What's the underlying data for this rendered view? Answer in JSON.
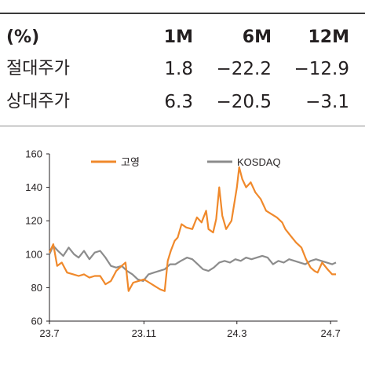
{
  "table": {
    "header": {
      "label": "(%)",
      "c1": "1M",
      "c2": "6M",
      "c3": "12M"
    },
    "rows": [
      {
        "label": "절대주가",
        "c1": "1.8",
        "c2": "−22.2",
        "c3": "−12.9"
      },
      {
        "label": "상대주가",
        "c1": "6.3",
        "c2": "−20.5",
        "c3": "−3.1"
      }
    ]
  },
  "chart_data": {
    "type": "line",
    "ylim": [
      60,
      160
    ],
    "yticks": [
      "60",
      "80",
      "100",
      "120",
      "140",
      "160"
    ],
    "xticks": [
      {
        "label": "23.7",
        "x": "2023-07-01"
      },
      {
        "label": "23.11",
        "x": "2023-11-01"
      },
      {
        "label": "24.3",
        "x": "2024-03-01"
      },
      {
        "label": "24.7",
        "x": "2024-07-01"
      }
    ],
    "xlim": [
      "2023-07-01",
      "2024-07-10"
    ],
    "legend_position": "top",
    "series": [
      {
        "name": "고영",
        "color": "#f0892b",
        "points": [
          [
            "2023-07-01",
            101
          ],
          [
            "2023-07-06",
            106
          ],
          [
            "2023-07-11",
            93
          ],
          [
            "2023-07-17",
            95
          ],
          [
            "2023-07-24",
            89
          ],
          [
            "2023-08-01",
            88
          ],
          [
            "2023-08-08",
            87
          ],
          [
            "2023-08-15",
            88
          ],
          [
            "2023-08-22",
            86
          ],
          [
            "2023-08-29",
            87
          ],
          [
            "2023-09-05",
            87
          ],
          [
            "2023-09-12",
            82
          ],
          [
            "2023-09-19",
            84
          ],
          [
            "2023-09-26",
            90
          ],
          [
            "2023-10-03",
            93
          ],
          [
            "2023-10-08",
            95
          ],
          [
            "2023-10-12",
            78
          ],
          [
            "2023-10-18",
            83
          ],
          [
            "2023-10-25",
            84
          ],
          [
            "2023-11-01",
            85
          ],
          [
            "2023-11-08",
            83
          ],
          [
            "2023-11-15",
            81
          ],
          [
            "2023-11-22",
            79
          ],
          [
            "2023-11-28",
            78
          ],
          [
            "2023-12-02",
            96
          ],
          [
            "2023-12-06",
            102
          ],
          [
            "2023-12-11",
            108
          ],
          [
            "2023-12-15",
            110
          ],
          [
            "2023-12-20",
            118
          ],
          [
            "2023-12-26",
            116
          ],
          [
            "2024-01-03",
            115
          ],
          [
            "2024-01-09",
            122
          ],
          [
            "2024-01-15",
            119
          ],
          [
            "2024-01-21",
            126
          ],
          [
            "2024-01-24",
            115
          ],
          [
            "2024-01-30",
            113
          ],
          [
            "2024-02-03",
            121
          ],
          [
            "2024-02-07",
            140
          ],
          [
            "2024-02-11",
            123
          ],
          [
            "2024-02-16",
            115
          ],
          [
            "2024-02-23",
            120
          ],
          [
            "2024-03-01",
            140
          ],
          [
            "2024-03-04",
            152
          ],
          [
            "2024-03-08",
            145
          ],
          [
            "2024-03-13",
            140
          ],
          [
            "2024-03-19",
            143
          ],
          [
            "2024-03-25",
            137
          ],
          [
            "2024-04-01",
            133
          ],
          [
            "2024-04-08",
            126
          ],
          [
            "2024-04-15",
            124
          ],
          [
            "2024-04-22",
            122
          ],
          [
            "2024-04-29",
            119
          ],
          [
            "2024-05-03",
            115
          ],
          [
            "2024-05-10",
            111
          ],
          [
            "2024-05-17",
            107
          ],
          [
            "2024-05-24",
            104
          ],
          [
            "2024-05-30",
            97
          ],
          [
            "2024-06-05",
            92
          ],
          [
            "2024-06-10",
            90
          ],
          [
            "2024-06-14",
            89
          ],
          [
            "2024-06-20",
            95
          ],
          [
            "2024-06-27",
            91
          ],
          [
            "2024-07-03",
            88
          ],
          [
            "2024-07-08",
            88
          ]
        ]
      },
      {
        "name": "KOSDAQ",
        "color": "#8c8c8c",
        "points": [
          [
            "2023-07-01",
            100
          ],
          [
            "2023-07-06",
            105
          ],
          [
            "2023-07-12",
            102
          ],
          [
            "2023-07-19",
            99
          ],
          [
            "2023-07-26",
            104
          ],
          [
            "2023-08-02",
            100
          ],
          [
            "2023-08-08",
            98
          ],
          [
            "2023-08-15",
            102
          ],
          [
            "2023-08-22",
            97
          ],
          [
            "2023-08-29",
            101
          ],
          [
            "2023-09-05",
            102
          ],
          [
            "2023-09-12",
            98
          ],
          [
            "2023-09-19",
            93
          ],
          [
            "2023-09-26",
            92
          ],
          [
            "2023-10-03",
            93
          ],
          [
            "2023-10-10",
            90
          ],
          [
            "2023-10-17",
            88
          ],
          [
            "2023-10-24",
            85
          ],
          [
            "2023-10-31",
            84
          ],
          [
            "2023-11-07",
            88
          ],
          [
            "2023-11-14",
            89
          ],
          [
            "2023-11-21",
            90
          ],
          [
            "2023-11-28",
            91
          ],
          [
            "2023-12-05",
            94
          ],
          [
            "2023-12-12",
            94
          ],
          [
            "2023-12-19",
            96
          ],
          [
            "2023-12-27",
            98
          ],
          [
            "2024-01-03",
            97
          ],
          [
            "2024-01-10",
            94
          ],
          [
            "2024-01-17",
            91
          ],
          [
            "2024-01-24",
            90
          ],
          [
            "2024-01-31",
            92
          ],
          [
            "2024-02-07",
            95
          ],
          [
            "2024-02-14",
            96
          ],
          [
            "2024-02-21",
            95
          ],
          [
            "2024-02-28",
            97
          ],
          [
            "2024-03-06",
            96
          ],
          [
            "2024-03-13",
            98
          ],
          [
            "2024-03-20",
            97
          ],
          [
            "2024-03-27",
            98
          ],
          [
            "2024-04-03",
            99
          ],
          [
            "2024-04-10",
            98
          ],
          [
            "2024-04-17",
            94
          ],
          [
            "2024-04-24",
            96
          ],
          [
            "2024-05-01",
            95
          ],
          [
            "2024-05-08",
            97
          ],
          [
            "2024-05-15",
            96
          ],
          [
            "2024-05-22",
            95
          ],
          [
            "2024-05-29",
            94
          ],
          [
            "2024-06-05",
            96
          ],
          [
            "2024-06-12",
            97
          ],
          [
            "2024-06-19",
            96
          ],
          [
            "2024-06-26",
            95
          ],
          [
            "2024-07-03",
            94
          ],
          [
            "2024-07-08",
            95
          ]
        ]
      }
    ]
  }
}
